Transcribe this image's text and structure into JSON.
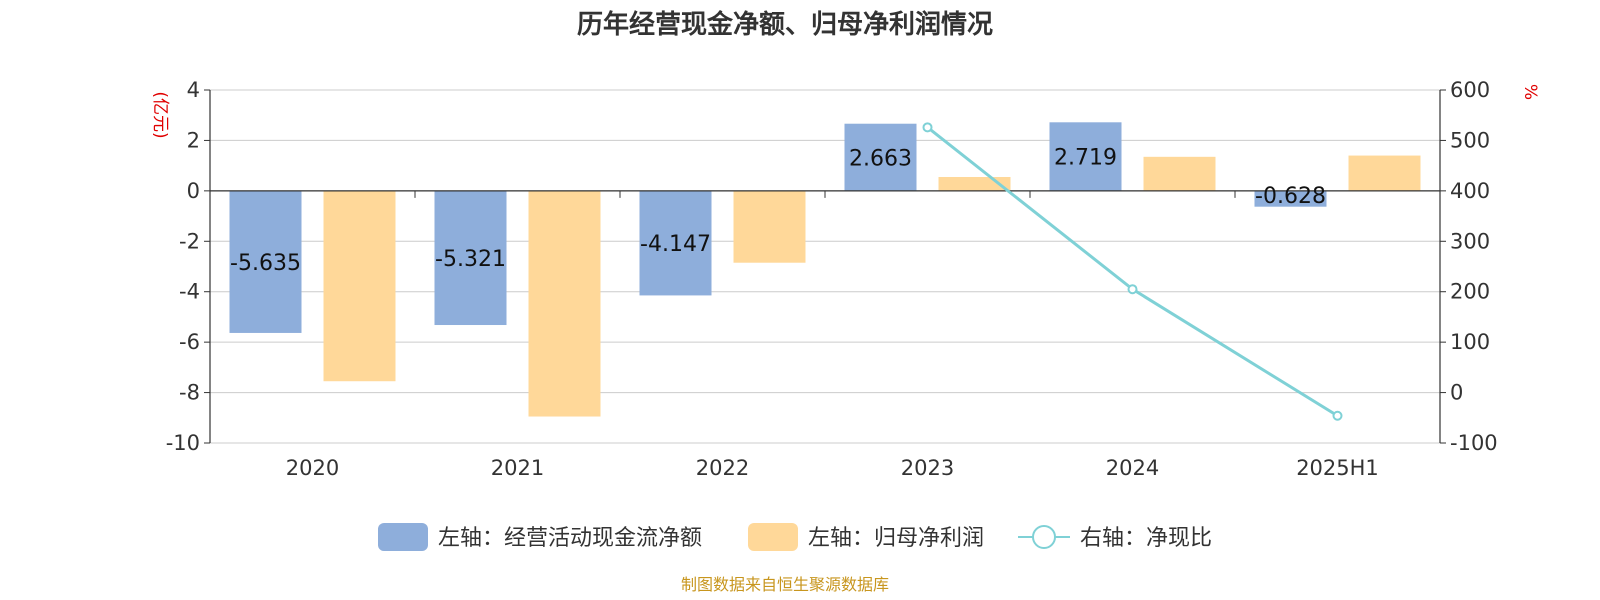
{
  "chart_data": {
    "title": "历年经营现金净额、归母净利润情况",
    "categories": [
      "2020",
      "2021",
      "2022",
      "2023",
      "2024",
      "2025H1"
    ],
    "left_axis": {
      "unit": "(亿元)",
      "ylim": [
        -10,
        4
      ],
      "ticks": [
        4,
        2,
        0,
        -2,
        -4,
        -6,
        -8,
        -10
      ]
    },
    "right_axis": {
      "unit": "%",
      "ylim": [
        -100,
        600
      ],
      "ticks": [
        600,
        500,
        400,
        300,
        200,
        100,
        0,
        -100
      ]
    },
    "series": [
      {
        "name": "左轴：经营活动现金流净额",
        "type": "bar",
        "axis": "left",
        "color": "#8eaedb",
        "values": [
          -5.635,
          -5.321,
          -4.147,
          2.663,
          2.719,
          -0.628
        ],
        "labels": [
          "-5.635",
          "-5.321",
          "-4.147",
          "2.663",
          "2.719",
          "-0.628"
        ]
      },
      {
        "name": "左轴：归母净利润",
        "type": "bar",
        "axis": "left",
        "color": "#ffd899",
        "values": [
          -7.55,
          -8.95,
          -2.85,
          0.55,
          1.35,
          1.4
        ]
      },
      {
        "name": "右轴：净现比",
        "type": "line",
        "axis": "right",
        "color": "#7fd1d6",
        "values": [
          null,
          null,
          null,
          526,
          205,
          -46
        ]
      }
    ],
    "grid": true,
    "legend_position": "bottom",
    "source": "制图数据来自恒生聚源数据库"
  }
}
